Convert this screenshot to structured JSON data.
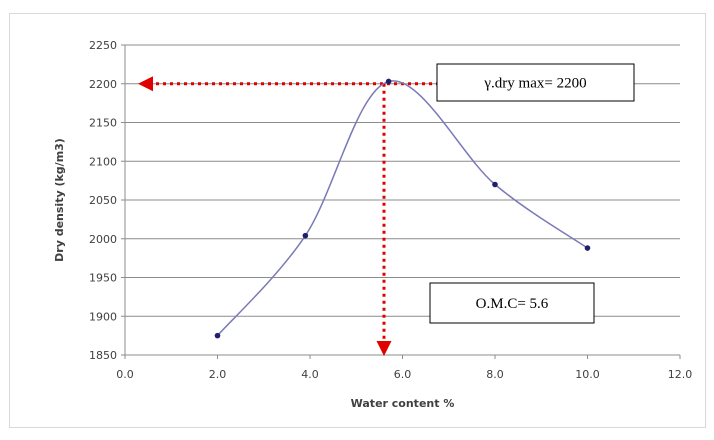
{
  "chart_data": {
    "type": "scatter",
    "title": "",
    "xlabel": "Water content %",
    "ylabel": "Dry density (kg/m3)",
    "xlim": [
      0,
      12
    ],
    "ylim": [
      1850,
      2250
    ],
    "x_ticks": [
      0,
      2,
      4,
      6,
      8,
      10,
      12
    ],
    "x_tick_labels": [
      "0.0",
      "2.0",
      "4.0",
      "6.0",
      "8.0",
      "10.0",
      "12.0"
    ],
    "y_ticks": [
      1850,
      1900,
      1950,
      2000,
      2050,
      2100,
      2150,
      2200,
      2250
    ],
    "y_tick_labels": [
      "1850",
      "1900",
      "1950",
      "2000",
      "2050",
      "2100",
      "2150",
      "2200",
      "2250"
    ],
    "grid": "horizontal",
    "legend": "none",
    "series": [
      {
        "x": [
          2.0,
          3.9,
          5.7,
          8.0,
          10.0
        ],
        "y": [
          1875,
          2004,
          2203,
          2070,
          1988
        ],
        "line": "smooth",
        "color": "#7a7ab8",
        "marker_color": "#1f1f6b"
      }
    ],
    "annotations": [
      {
        "text": "γ.dry max= 2200",
        "kind": "box"
      },
      {
        "text": "O.M.C= 5.6",
        "kind": "box"
      }
    ],
    "reference_lines": [
      {
        "orientation": "horizontal",
        "y": 2200,
        "from_x": 5.6,
        "to_x": 0,
        "style": "dotted-arrow",
        "color": "#e00000"
      },
      {
        "orientation": "vertical",
        "x": 5.6,
        "from_y": 2200,
        "to_y": 1850,
        "style": "dotted-arrow",
        "color": "#e00000"
      }
    ]
  }
}
